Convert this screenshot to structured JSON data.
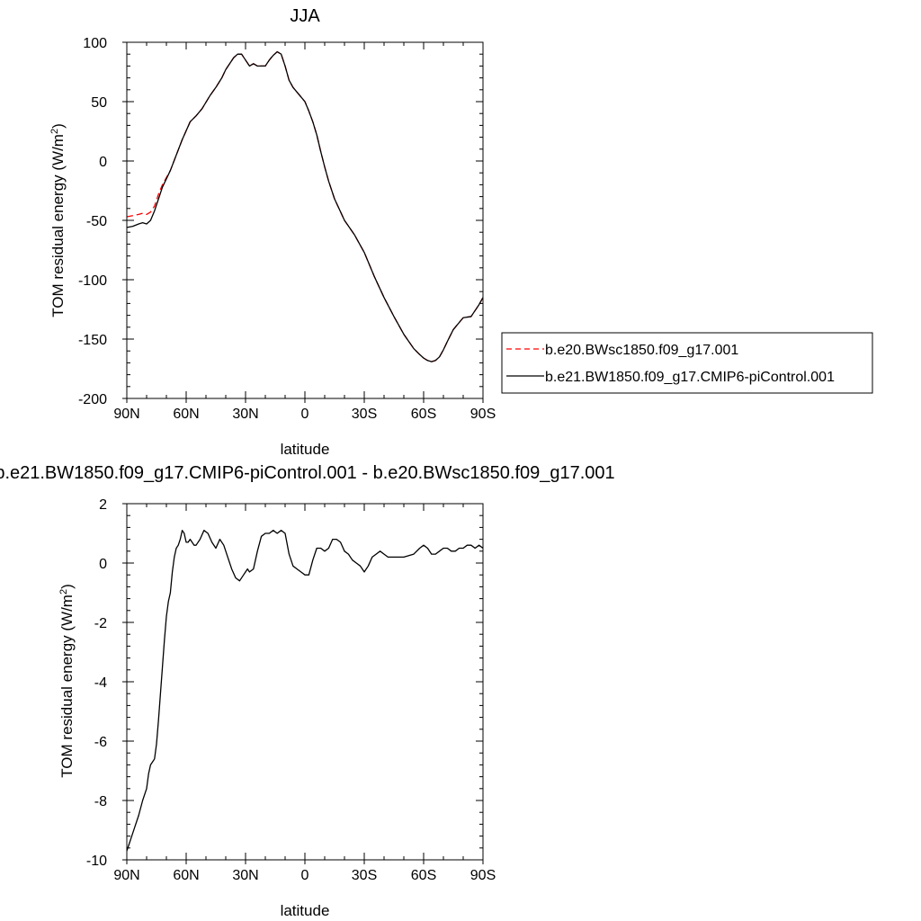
{
  "colors": {
    "control": "#000000",
    "experiment": "#ff0000",
    "background": "#ffffff"
  },
  "chart_data": [
    {
      "type": "line",
      "title": "JJA",
      "xlabel": "latitude",
      "ylabel_main": "TOM residual energy (W/m",
      "ylabel_sup": "2",
      "ylabel_close": ")",
      "xlim": [
        90,
        -90
      ],
      "ylim": [
        -200,
        100
      ],
      "x_ticks": [
        90,
        60,
        30,
        0,
        -30,
        -60,
        -90
      ],
      "x_tick_labels": [
        "90N",
        "60N",
        "30N",
        "0",
        "30S",
        "60S",
        "90S"
      ],
      "y_ticks": [
        -200,
        -150,
        -100,
        -50,
        0,
        50,
        100
      ],
      "y_tick_labels": [
        "-200",
        "-150",
        "-100",
        "-50",
        "0",
        "50",
        "100"
      ],
      "grid": false,
      "legend_position": "right",
      "series": [
        {
          "name": "b.e20.BWsc1850.f09_g17.001",
          "style": "dashed",
          "color": "#ff0000",
          "x": [
            90,
            87,
            84,
            82,
            80,
            78,
            76,
            74,
            72,
            70,
            68,
            65,
            62,
            58,
            55,
            52,
            48,
            45,
            42,
            40,
            38,
            36,
            34,
            32,
            30,
            28,
            26,
            24,
            22,
            20,
            18,
            16,
            14,
            12,
            10,
            8,
            6,
            4,
            2,
            0,
            -2,
            -4,
            -6,
            -8,
            -10,
            -12,
            -15,
            -20,
            -25,
            -30,
            -35,
            -40,
            -45,
            -50,
            -55,
            -58,
            -60,
            -62,
            -64,
            -66,
            -68,
            -70,
            -72,
            -75,
            -78,
            -80,
            -84,
            -86,
            -88,
            -90
          ],
          "y": [
            -47,
            -46,
            -45,
            -44,
            -45,
            -43,
            -38,
            -28,
            -20,
            -14,
            -8,
            5,
            18,
            33,
            38,
            44,
            55,
            62,
            70,
            77,
            82,
            87,
            90,
            90,
            85,
            80,
            82,
            80,
            80,
            80,
            85,
            89,
            92,
            90,
            80,
            68,
            62,
            58,
            54,
            50,
            42,
            33,
            22,
            8,
            -5,
            -17,
            -32,
            -50,
            -62,
            -77,
            -97,
            -115,
            -131,
            -146,
            -158,
            -163,
            -166,
            -168,
            -169,
            -168,
            -165,
            -159,
            -152,
            -142,
            -136,
            -132,
            -131,
            -126,
            -121,
            -115
          ]
        },
        {
          "name": "b.e21.BW1850.f09_g17.CMIP6-piControl.001",
          "style": "solid",
          "color": "#000000",
          "x": [
            90,
            87,
            84,
            82,
            80,
            78,
            76,
            74,
            72,
            70,
            68,
            65,
            62,
            58,
            55,
            52,
            48,
            45,
            42,
            40,
            38,
            36,
            34,
            32,
            30,
            28,
            26,
            24,
            22,
            20,
            18,
            16,
            14,
            12,
            10,
            8,
            6,
            4,
            2,
            0,
            -2,
            -4,
            -6,
            -8,
            -10,
            -12,
            -15,
            -20,
            -25,
            -30,
            -35,
            -40,
            -45,
            -50,
            -55,
            -58,
            -60,
            -62,
            -64,
            -66,
            -68,
            -70,
            -72,
            -75,
            -78,
            -80,
            -84,
            -86,
            -88,
            -90
          ],
          "y": [
            -56,
            -55,
            -53,
            -52,
            -53,
            -50,
            -42,
            -32,
            -22,
            -15,
            -8,
            5,
            18,
            33,
            38,
            44,
            55,
            62,
            70,
            77,
            82,
            87,
            90,
            90,
            85,
            80,
            82,
            80,
            80,
            80,
            85,
            89,
            92,
            90,
            80,
            68,
            62,
            58,
            54,
            50,
            42,
            33,
            22,
            8,
            -5,
            -17,
            -32,
            -50,
            -62,
            -77,
            -97,
            -115,
            -131,
            -146,
            -158,
            -163,
            -166,
            -168,
            -169,
            -168,
            -165,
            -159,
            -152,
            -142,
            -136,
            -132,
            -131,
            -126,
            -121,
            -115
          ]
        }
      ]
    },
    {
      "type": "line",
      "title": "b.e21.BW1850.f09_g17.CMIP6-piControl.001 - b.e20.BWsc1850.f09_g17.001",
      "xlabel": "latitude",
      "ylabel_main": "TOM residual energy (W/m",
      "ylabel_sup": "2",
      "ylabel_close": ")",
      "xlim": [
        90,
        -90
      ],
      "ylim": [
        -10,
        2
      ],
      "x_ticks": [
        90,
        60,
        30,
        0,
        -30,
        -60,
        -90
      ],
      "x_tick_labels": [
        "90N",
        "60N",
        "30N",
        "0",
        "30S",
        "60S",
        "90S"
      ],
      "y_ticks": [
        -10,
        -8,
        -6,
        -4,
        -2,
        0,
        2
      ],
      "y_tick_labels": [
        "-10",
        "-8",
        "-6",
        "-4",
        "-2",
        "0",
        "2"
      ],
      "grid": false,
      "series": [
        {
          "style": "solid",
          "color": "#000000",
          "x": [
            90,
            89,
            88,
            86,
            84,
            82,
            80,
            79,
            78,
            77,
            76,
            75,
            74,
            73,
            72,
            71,
            70,
            69,
            68,
            67,
            66,
            65,
            64,
            63,
            62,
            61,
            60,
            59,
            58,
            57,
            56,
            55,
            53,
            51,
            49,
            47,
            45,
            43,
            41,
            39,
            37,
            35,
            33,
            31,
            30,
            29,
            28,
            26,
            24,
            22,
            20,
            18,
            16,
            14,
            12,
            10,
            8,
            6,
            4,
            2,
            0,
            -2,
            -4,
            -6,
            -8,
            -10,
            -12,
            -14,
            -16,
            -18,
            -20,
            -22,
            -24,
            -26,
            -28,
            -30,
            -32,
            -34,
            -36,
            -38,
            -40,
            -42,
            -45,
            -50,
            -55,
            -58,
            -60,
            -62,
            -64,
            -66,
            -68,
            -70,
            -72,
            -74,
            -76,
            -78,
            -80,
            -82,
            -84,
            -86,
            -88,
            -90
          ],
          "y": [
            -9.7,
            -9.5,
            -9.3,
            -8.9,
            -8.5,
            -8.0,
            -7.6,
            -7.1,
            -6.8,
            -6.7,
            -6.6,
            -6.1,
            -5.3,
            -4.4,
            -3.5,
            -2.6,
            -1.8,
            -1.3,
            -1.0,
            -0.3,
            0.2,
            0.5,
            0.6,
            0.8,
            1.1,
            1.0,
            0.7,
            0.7,
            0.8,
            0.7,
            0.6,
            0.6,
            0.8,
            1.1,
            1.0,
            0.7,
            0.5,
            0.8,
            0.6,
            0.2,
            -0.2,
            -0.5,
            -0.6,
            -0.4,
            -0.3,
            -0.2,
            -0.3,
            -0.2,
            0.4,
            0.9,
            1.0,
            1.0,
            1.1,
            1.0,
            1.1,
            1.0,
            0.3,
            -0.1,
            -0.2,
            -0.3,
            -0.4,
            -0.4,
            0.1,
            0.5,
            0.5,
            0.4,
            0.5,
            0.8,
            0.8,
            0.7,
            0.4,
            0.3,
            0.1,
            0.0,
            -0.1,
            -0.3,
            -0.1,
            0.2,
            0.3,
            0.4,
            0.3,
            0.2,
            0.2,
            0.2,
            0.3,
            0.5,
            0.6,
            0.5,
            0.3,
            0.3,
            0.4,
            0.5,
            0.5,
            0.4,
            0.4,
            0.5,
            0.5,
            0.6,
            0.6,
            0.5,
            0.6,
            0.5
          ]
        }
      ]
    }
  ]
}
